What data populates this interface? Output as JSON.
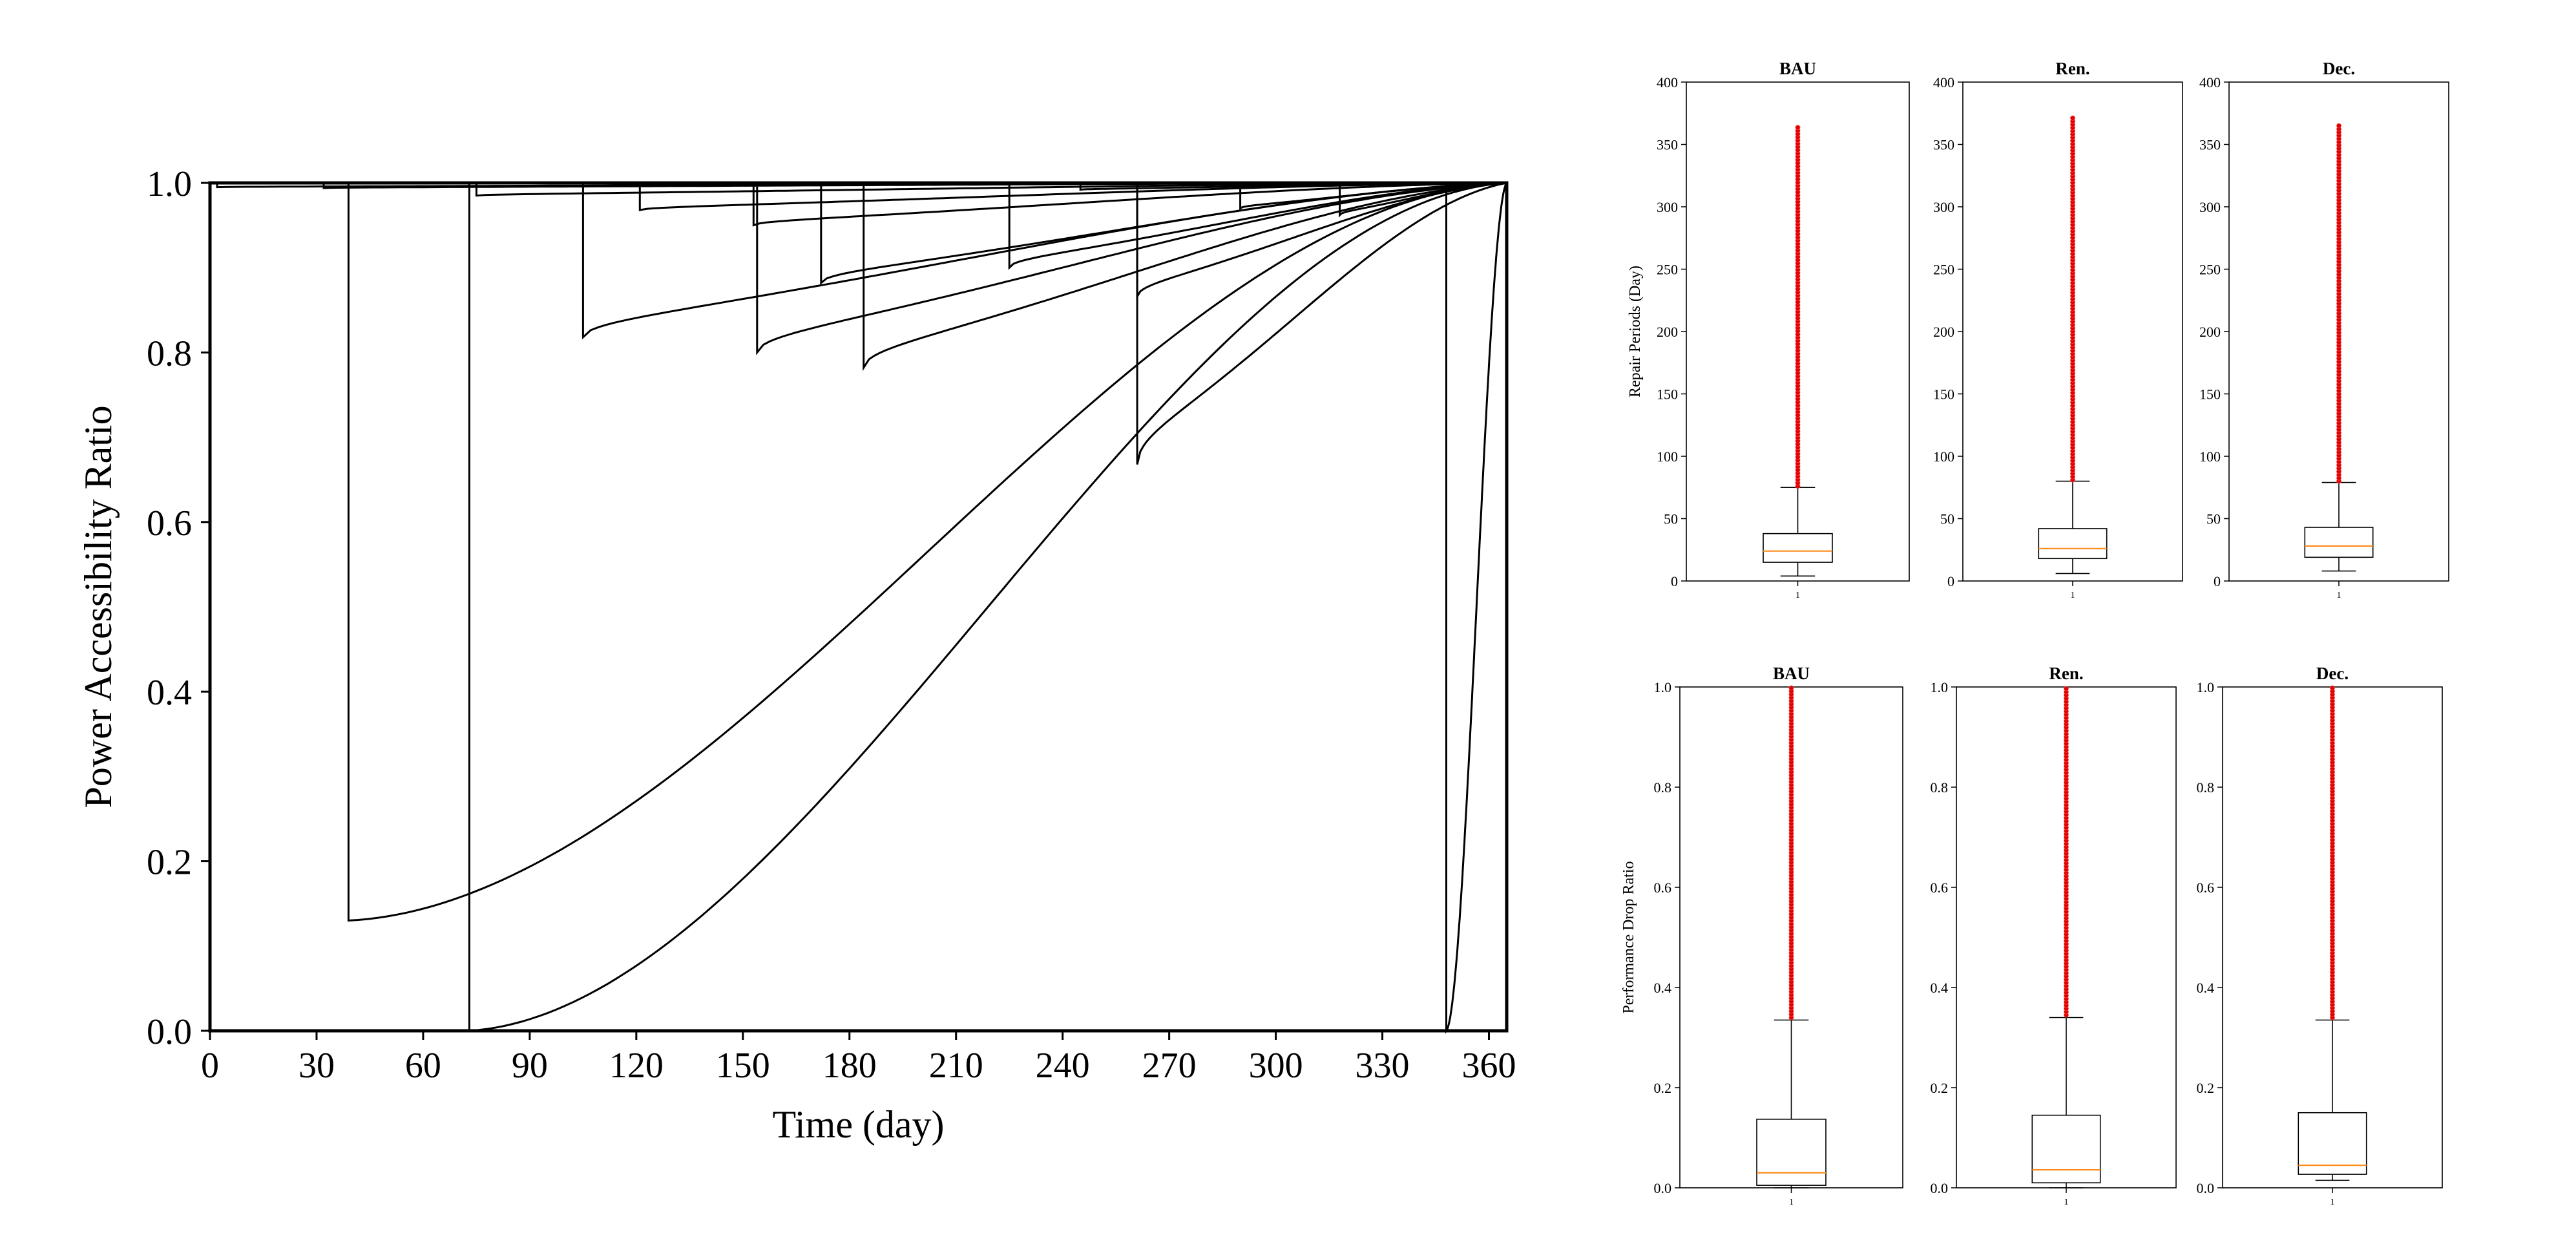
{
  "chart_data": [
    {
      "type": "line",
      "title": "",
      "xlabel": "Time (day)",
      "ylabel": "Power Accessibility Ratio",
      "xlim": [
        0,
        365
      ],
      "ylim": [
        0,
        1
      ],
      "xticks": [
        0,
        30,
        60,
        90,
        120,
        150,
        180,
        210,
        240,
        270,
        300,
        330,
        360
      ],
      "yticks": [
        0.0,
        0.2,
        0.4,
        0.6,
        0.8,
        1.0
      ],
      "xtick_labels": [
        "0",
        "30",
        "60",
        "90",
        "120",
        "150",
        "180",
        "210",
        "240",
        "270",
        "300",
        "330",
        "360"
      ],
      "ytick_labels": [
        "0.0",
        "0.2",
        "0.4",
        "0.6",
        "0.8",
        "1.0"
      ],
      "grid": false,
      "line_color": "#000000",
      "recovery_events": [
        {
          "drop_day": 2,
          "min_ratio": 0.995
        },
        {
          "drop_day": 32,
          "min_ratio": 0.994
        },
        {
          "drop_day": 39,
          "min_ratio": 0.13
        },
        {
          "drop_day": 73,
          "min_ratio": 0.0
        },
        {
          "drop_day": 75,
          "min_ratio": 0.985
        },
        {
          "drop_day": 105,
          "min_ratio": 0.818
        },
        {
          "drop_day": 121,
          "min_ratio": 0.968
        },
        {
          "drop_day": 153,
          "min_ratio": 0.95
        },
        {
          "drop_day": 154,
          "min_ratio": 0.8
        },
        {
          "drop_day": 172,
          "min_ratio": 0.882
        },
        {
          "drop_day": 184,
          "min_ratio": 0.782
        },
        {
          "drop_day": 225,
          "min_ratio": 0.9
        },
        {
          "drop_day": 245,
          "min_ratio": 0.992
        },
        {
          "drop_day": 261,
          "min_ratio": 0.668
        },
        {
          "drop_day": 261,
          "min_ratio": 0.866
        },
        {
          "drop_day": 290,
          "min_ratio": 0.97
        },
        {
          "drop_day": 318,
          "min_ratio": 0.962
        },
        {
          "drop_day": 348,
          "min_ratio": 0.0
        }
      ]
    },
    {
      "type": "box",
      "title": "BAU",
      "ylabel": "Repair Periods (Day)",
      "ylim": [
        0,
        400
      ],
      "yticks": [
        0,
        50,
        100,
        150,
        200,
        250,
        300,
        350,
        400
      ],
      "ytick_labels": [
        "0",
        "50",
        "100",
        "150",
        "200",
        "250",
        "300",
        "350",
        "400"
      ],
      "xtick_labels": [
        "1"
      ],
      "whisker_low": 4,
      "q1": 15,
      "median": 24,
      "q3": 38,
      "whisker_high": 75,
      "outlier_range": [
        76,
        366
      ]
    },
    {
      "type": "box",
      "title": "Ren.",
      "ylabel": "",
      "ylim": [
        0,
        400
      ],
      "yticks": [
        0,
        50,
        100,
        150,
        200,
        250,
        300,
        350,
        400
      ],
      "ytick_labels": [
        "0",
        "50",
        "100",
        "150",
        "200",
        "250",
        "300",
        "350",
        "400"
      ],
      "xtick_labels": [
        "1"
      ],
      "whisker_low": 6,
      "q1": 18,
      "median": 26,
      "q3": 42,
      "whisker_high": 80,
      "outlier_range": [
        81,
        372
      ]
    },
    {
      "type": "box",
      "title": "Dec.",
      "ylabel": "",
      "ylim": [
        0,
        400
      ],
      "yticks": [
        0,
        50,
        100,
        150,
        200,
        250,
        300,
        350,
        400
      ],
      "ytick_labels": [
        "0",
        "50",
        "100",
        "150",
        "200",
        "250",
        "300",
        "350",
        "400"
      ],
      "xtick_labels": [
        "1"
      ],
      "whisker_low": 8,
      "q1": 19,
      "median": 28,
      "q3": 43,
      "whisker_high": 79,
      "outlier_range": [
        80,
        367
      ]
    },
    {
      "type": "box",
      "title": "BAU",
      "ylabel": "Performance Drop Ratio",
      "ylim": [
        0,
        1
      ],
      "yticks": [
        0.0,
        0.2,
        0.4,
        0.6,
        0.8,
        1.0
      ],
      "ytick_labels": [
        "0.0",
        "0.2",
        "0.4",
        "0.6",
        "0.8",
        "1.0"
      ],
      "xtick_labels": [
        "1"
      ],
      "whisker_low": 0.0,
      "q1": 0.005,
      "median": 0.03,
      "q3": 0.137,
      "whisker_high": 0.335,
      "outlier_range": [
        0.34,
        1.0
      ]
    },
    {
      "type": "box",
      "title": "Ren.",
      "ylabel": "",
      "ylim": [
        0,
        1
      ],
      "yticks": [
        0.0,
        0.2,
        0.4,
        0.6,
        0.8,
        1.0
      ],
      "ytick_labels": [
        "0.0",
        "0.2",
        "0.4",
        "0.6",
        "0.8",
        "1.0"
      ],
      "xtick_labels": [
        "1"
      ],
      "whisker_low": 0.0,
      "q1": 0.01,
      "median": 0.036,
      "q3": 0.145,
      "whisker_high": 0.34,
      "outlier_range": [
        0.345,
        1.0
      ]
    },
    {
      "type": "box",
      "title": "Dec.",
      "ylabel": "",
      "ylim": [
        0,
        1
      ],
      "yticks": [
        0.0,
        0.2,
        0.4,
        0.6,
        0.8,
        1.0
      ],
      "ytick_labels": [
        "0.0",
        "0.2",
        "0.4",
        "0.6",
        "0.8",
        "1.0"
      ],
      "xtick_labels": [
        "1"
      ],
      "whisker_low": 0.015,
      "q1": 0.027,
      "median": 0.045,
      "q3": 0.15,
      "whisker_high": 0.335,
      "outlier_range": [
        0.34,
        1.0
      ]
    }
  ],
  "colors": {
    "axes": "#000000",
    "box_median": "#ff8c1a",
    "outlier": "#e00000"
  }
}
